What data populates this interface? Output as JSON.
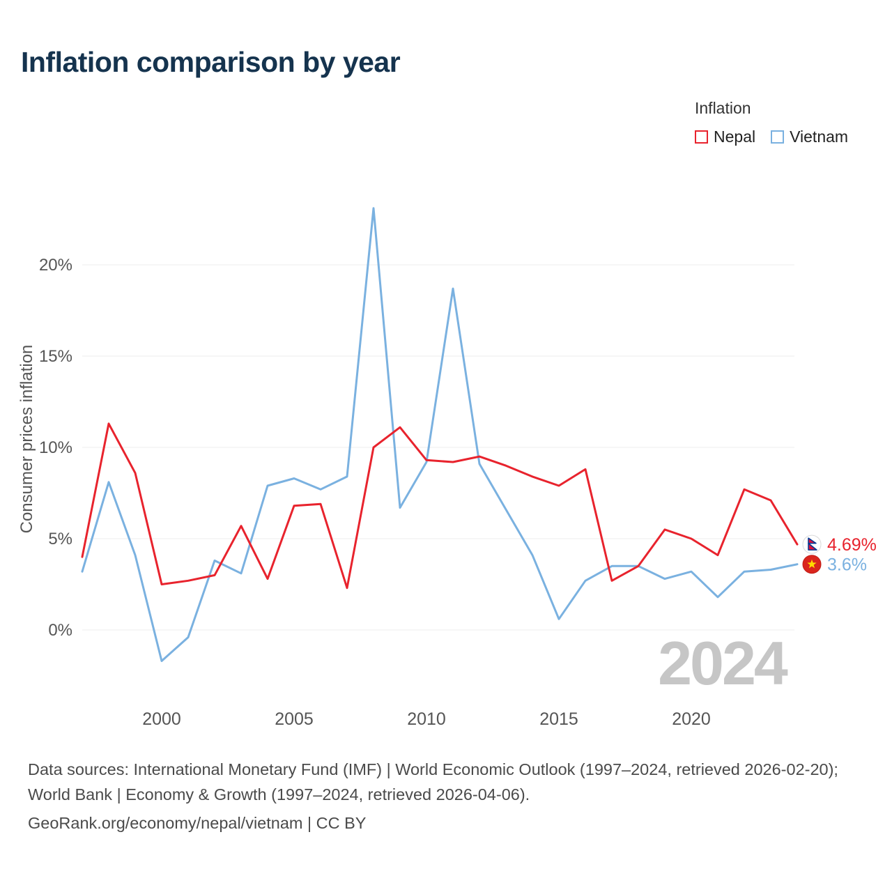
{
  "title": "Inflation comparison by year",
  "legend": {
    "title": "Inflation",
    "series": [
      {
        "label": "Nepal",
        "color": "#e8232d"
      },
      {
        "label": "Vietnam",
        "color": "#7ab1e0"
      }
    ]
  },
  "chart_data": {
    "type": "line",
    "title": "Inflation comparison by year",
    "xlabel": "",
    "ylabel": "Consumer prices inflation",
    "x": [
      1997,
      1998,
      1999,
      2000,
      2001,
      2002,
      2003,
      2004,
      2005,
      2006,
      2007,
      2008,
      2009,
      2010,
      2011,
      2012,
      2013,
      2014,
      2015,
      2016,
      2017,
      2018,
      2019,
      2020,
      2021,
      2022,
      2023,
      2024
    ],
    "series": [
      {
        "name": "Nepal",
        "color": "#e8232d",
        "values": [
          4.0,
          11.3,
          8.6,
          2.5,
          2.7,
          3.0,
          5.7,
          2.8,
          6.8,
          6.9,
          2.3,
          10.0,
          11.1,
          9.3,
          9.2,
          9.5,
          9.0,
          8.4,
          7.9,
          8.8,
          2.7,
          3.5,
          5.5,
          5.0,
          4.1,
          7.7,
          7.1,
          4.69
        ]
      },
      {
        "name": "Vietnam",
        "color": "#7ab1e0",
        "values": [
          3.2,
          8.1,
          4.1,
          -1.7,
          -0.4,
          3.8,
          3.1,
          7.9,
          8.3,
          7.7,
          8.4,
          23.1,
          6.7,
          9.2,
          18.7,
          9.1,
          6.6,
          4.1,
          0.6,
          2.7,
          3.5,
          3.5,
          2.8,
          3.2,
          1.8,
          3.2,
          3.3,
          3.6
        ]
      }
    ],
    "ylim": [
      -3,
      24
    ],
    "yticks": [
      0,
      5,
      10,
      15,
      20
    ],
    "ytick_labels": [
      "0%",
      "5%",
      "10%",
      "15%",
      "20%"
    ],
    "xticks": [
      2000,
      2005,
      2010,
      2015,
      2020
    ],
    "grid": true,
    "legend_position": "top-right"
  },
  "annotations": {
    "watermark": "2024",
    "end_labels": [
      {
        "series": "Nepal",
        "text": "4.69%",
        "color": "#e8232d",
        "flag": "nepal-flag"
      },
      {
        "series": "Vietnam",
        "text": "3.6%",
        "color": "#7ab1e0",
        "flag": "vietnam-flag"
      }
    ]
  },
  "footer": {
    "sources": "Data sources: International Monetary Fund (IMF) | World Economic Outlook (1997–2024, retrieved 2026-02-20); World Bank | Economy & Growth (1997–2024, retrieved 2026-04-06).",
    "attribution": "GeoRank.org/economy/nepal/vietnam | CC BY"
  }
}
